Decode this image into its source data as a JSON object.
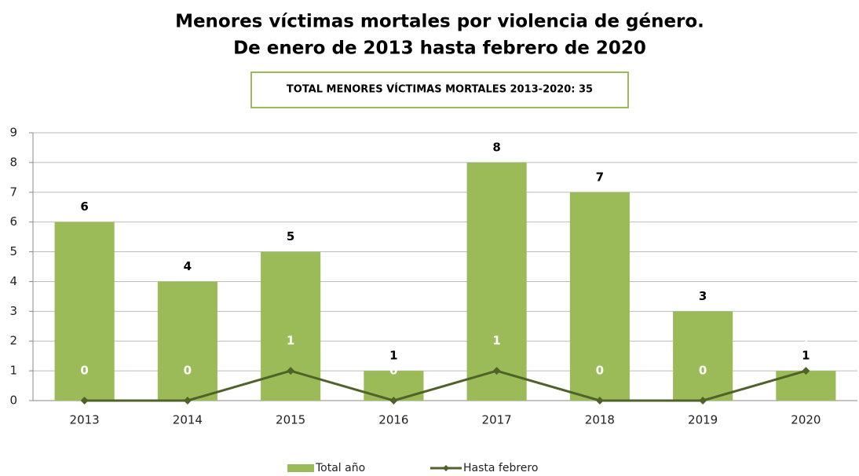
{
  "chart_data": {
    "type": "bar",
    "title": [
      "Menores víctimas mortales por violencia de género.",
      "De enero de 2013 hasta febrero de 2020"
    ],
    "annotation": "TOTAL MENORES VÍCTIMAS MORTALES 2013-2020: 35",
    "categories": [
      "2013",
      "2014",
      "2015",
      "2016",
      "2017",
      "2018",
      "2019",
      "2020"
    ],
    "series": [
      {
        "name": "Total año",
        "type": "bar",
        "color": "#9bbb59",
        "values": [
          6,
          4,
          5,
          1,
          8,
          7,
          3,
          1
        ]
      },
      {
        "name": "Hasta febrero",
        "type": "line",
        "color": "#4f6228",
        "values": [
          0,
          0,
          1,
          0,
          1,
          0,
          0,
          1
        ]
      }
    ],
    "ylim": [
      0,
      9
    ],
    "yticks": [
      0,
      1,
      2,
      3,
      4,
      5,
      6,
      7,
      8,
      9
    ],
    "grid": true,
    "legend": "bottom"
  }
}
